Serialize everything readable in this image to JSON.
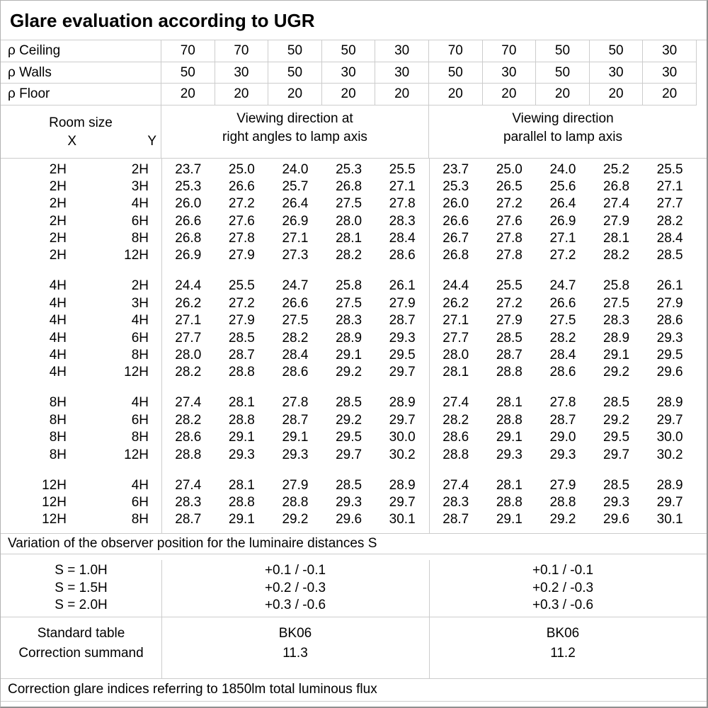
{
  "title": "Glare evaluation according to UGR",
  "reflectances": {
    "rows": [
      {
        "label": "ρ Ceiling",
        "values": [
          "70",
          "70",
          "50",
          "50",
          "30",
          "70",
          "70",
          "50",
          "50",
          "30"
        ]
      },
      {
        "label": "ρ Walls",
        "values": [
          "50",
          "30",
          "50",
          "30",
          "30",
          "50",
          "30",
          "50",
          "30",
          "30"
        ]
      },
      {
        "label": "ρ Floor",
        "values": [
          "20",
          "20",
          "20",
          "20",
          "20",
          "20",
          "20",
          "20",
          "20",
          "20"
        ]
      }
    ]
  },
  "table_header": {
    "room_size": "Room size",
    "x": "X",
    "y": "Y",
    "group1_line1": "Viewing direction at",
    "group1_line2": "right angles to lamp axis",
    "group2_line1": "Viewing direction",
    "group2_line2": "parallel to lamp axis"
  },
  "ugr_table": {
    "blocks": [
      {
        "rows": [
          {
            "x": "2H",
            "y": "2H",
            "values": [
              "23.7",
              "25.0",
              "24.0",
              "25.3",
              "25.5",
              "23.7",
              "25.0",
              "24.0",
              "25.2",
              "25.5"
            ]
          },
          {
            "x": "2H",
            "y": "3H",
            "values": [
              "25.3",
              "26.6",
              "25.7",
              "26.8",
              "27.1",
              "25.3",
              "26.5",
              "25.6",
              "26.8",
              "27.1"
            ]
          },
          {
            "x": "2H",
            "y": "4H",
            "values": [
              "26.0",
              "27.2",
              "26.4",
              "27.5",
              "27.8",
              "26.0",
              "27.2",
              "26.4",
              "27.4",
              "27.7"
            ]
          },
          {
            "x": "2H",
            "y": "6H",
            "values": [
              "26.6",
              "27.6",
              "26.9",
              "28.0",
              "28.3",
              "26.6",
              "27.6",
              "26.9",
              "27.9",
              "28.2"
            ]
          },
          {
            "x": "2H",
            "y": "8H",
            "values": [
              "26.8",
              "27.8",
              "27.1",
              "28.1",
              "28.4",
              "26.7",
              "27.8",
              "27.1",
              "28.1",
              "28.4"
            ]
          },
          {
            "x": "2H",
            "y": "12H",
            "values": [
              "26.9",
              "27.9",
              "27.3",
              "28.2",
              "28.6",
              "26.8",
              "27.8",
              "27.2",
              "28.2",
              "28.5"
            ]
          }
        ]
      },
      {
        "rows": [
          {
            "x": "4H",
            "y": "2H",
            "values": [
              "24.4",
              "25.5",
              "24.7",
              "25.8",
              "26.1",
              "24.4",
              "25.5",
              "24.7",
              "25.8",
              "26.1"
            ]
          },
          {
            "x": "4H",
            "y": "3H",
            "values": [
              "26.2",
              "27.2",
              "26.6",
              "27.5",
              "27.9",
              "26.2",
              "27.2",
              "26.6",
              "27.5",
              "27.9"
            ]
          },
          {
            "x": "4H",
            "y": "4H",
            "values": [
              "27.1",
              "27.9",
              "27.5",
              "28.3",
              "28.7",
              "27.1",
              "27.9",
              "27.5",
              "28.3",
              "28.6"
            ]
          },
          {
            "x": "4H",
            "y": "6H",
            "values": [
              "27.7",
              "28.5",
              "28.2",
              "28.9",
              "29.3",
              "27.7",
              "28.5",
              "28.2",
              "28.9",
              "29.3"
            ]
          },
          {
            "x": "4H",
            "y": "8H",
            "values": [
              "28.0",
              "28.7",
              "28.4",
              "29.1",
              "29.5",
              "28.0",
              "28.7",
              "28.4",
              "29.1",
              "29.5"
            ]
          },
          {
            "x": "4H",
            "y": "12H",
            "values": [
              "28.2",
              "28.8",
              "28.6",
              "29.2",
              "29.7",
              "28.1",
              "28.8",
              "28.6",
              "29.2",
              "29.6"
            ]
          }
        ]
      },
      {
        "rows": [
          {
            "x": "8H",
            "y": "4H",
            "values": [
              "27.4",
              "28.1",
              "27.8",
              "28.5",
              "28.9",
              "27.4",
              "28.1",
              "27.8",
              "28.5",
              "28.9"
            ]
          },
          {
            "x": "8H",
            "y": "6H",
            "values": [
              "28.2",
              "28.8",
              "28.7",
              "29.2",
              "29.7",
              "28.2",
              "28.8",
              "28.7",
              "29.2",
              "29.7"
            ]
          },
          {
            "x": "8H",
            "y": "8H",
            "values": [
              "28.6",
              "29.1",
              "29.1",
              "29.5",
              "30.0",
              "28.6",
              "29.1",
              "29.0",
              "29.5",
              "30.0"
            ]
          },
          {
            "x": "8H",
            "y": "12H",
            "values": [
              "28.8",
              "29.3",
              "29.3",
              "29.7",
              "30.2",
              "28.8",
              "29.3",
              "29.3",
              "29.7",
              "30.2"
            ]
          }
        ]
      },
      {
        "rows": [
          {
            "x": "12H",
            "y": "4H",
            "values": [
              "27.4",
              "28.1",
              "27.9",
              "28.5",
              "28.9",
              "27.4",
              "28.1",
              "27.9",
              "28.5",
              "28.9"
            ]
          },
          {
            "x": "12H",
            "y": "6H",
            "values": [
              "28.3",
              "28.8",
              "28.8",
              "29.3",
              "29.7",
              "28.3",
              "28.8",
              "28.8",
              "29.3",
              "29.7"
            ]
          },
          {
            "x": "12H",
            "y": "8H",
            "values": [
              "28.7",
              "29.1",
              "29.2",
              "29.6",
              "30.1",
              "28.7",
              "29.1",
              "29.2",
              "29.6",
              "30.1"
            ]
          }
        ]
      }
    ]
  },
  "variation": {
    "note": "Variation of the observer position for the luminaire distances S",
    "rows": [
      {
        "label": "S = 1.0H",
        "group1": "+0.1 / -0.1",
        "group2": "+0.1 / -0.1"
      },
      {
        "label": "S = 1.5H",
        "group1": "+0.2 / -0.3",
        "group2": "+0.2 / -0.3"
      },
      {
        "label": "S = 2.0H",
        "group1": "+0.3 / -0.6",
        "group2": "+0.3 / -0.6"
      }
    ]
  },
  "summary": {
    "rows": [
      {
        "label": "Standard table",
        "group1": "BK06",
        "group2": "BK06"
      },
      {
        "label": "Correction summand",
        "group1": "11.3",
        "group2": "11.2"
      }
    ]
  },
  "footer": {
    "note": "Correction glare indices referring to 1850lm total luminous flux"
  }
}
